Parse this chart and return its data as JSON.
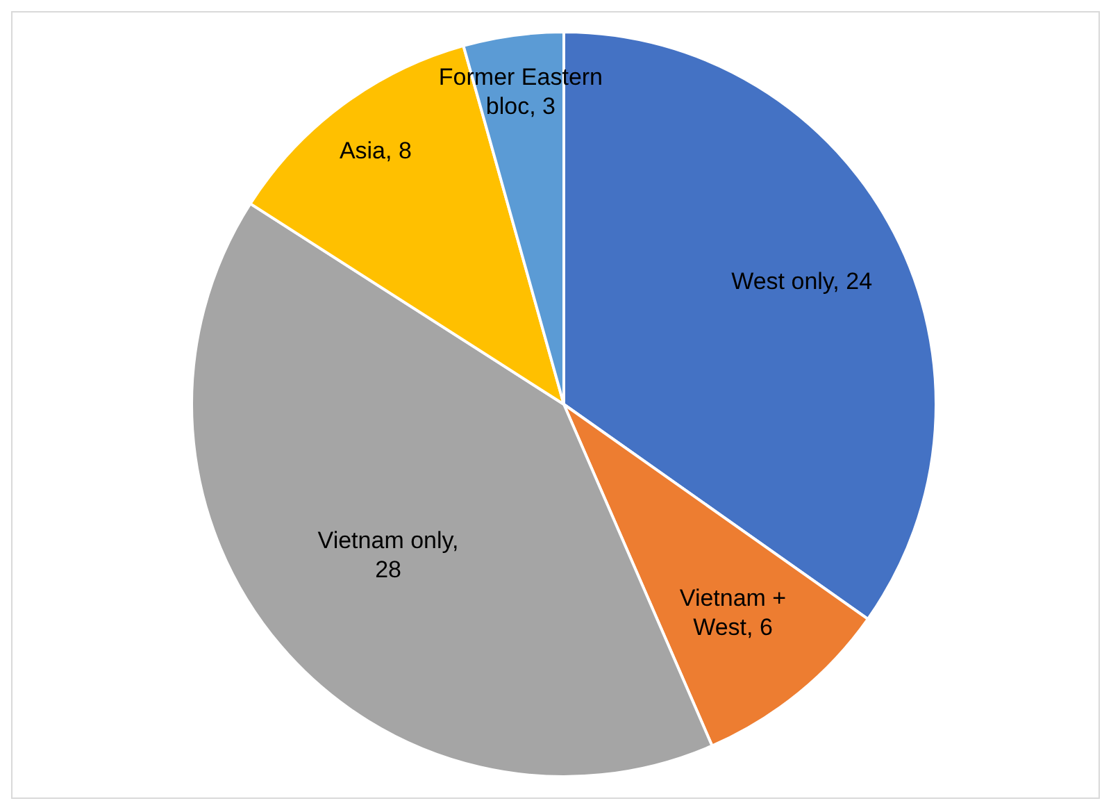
{
  "chart_data": {
    "type": "pie",
    "categories": [
      "West only",
      "Vietnam + West",
      "Vietnam only",
      "Asia",
      "Former Eastern bloc"
    ],
    "values": [
      24,
      6,
      28,
      8,
      3
    ],
    "colors": [
      "#4472c4",
      "#ed7d31",
      "#a5a5a5",
      "#ffc000",
      "#5b9bd5"
    ],
    "value_labels": [
      ", 24",
      ", 6",
      ", 28",
      ", 8",
      ", 3"
    ],
    "legend": false
  }
}
